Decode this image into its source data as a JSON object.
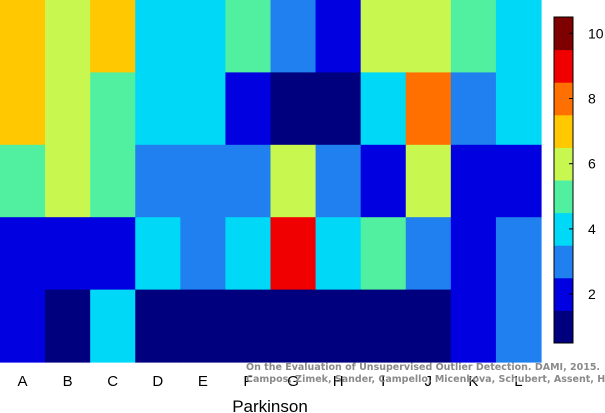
{
  "chart_data": {
    "type": "heatmap",
    "title": "",
    "xlabel": "Parkinson",
    "ylabel": "",
    "categories": [
      "A",
      "B",
      "C",
      "D",
      "E",
      "F",
      "G",
      "H",
      "I",
      "J",
      "K",
      "L"
    ],
    "rows": 5,
    "values": [
      [
        7,
        6,
        7,
        4,
        4,
        5,
        3,
        2,
        6,
        6,
        5,
        4
      ],
      [
        7,
        6,
        5,
        4,
        4,
        2,
        1,
        1,
        4,
        8,
        3,
        4
      ],
      [
        5,
        6,
        5,
        3,
        3,
        3,
        6,
        3,
        2,
        6,
        2,
        2
      ],
      [
        2,
        2,
        2,
        4,
        3,
        4,
        9,
        4,
        5,
        3,
        2,
        3
      ],
      [
        2,
        1,
        4,
        1,
        1,
        1,
        1,
        1,
        1,
        1,
        2,
        3
      ]
    ],
    "colorbar": {
      "ticks": [
        2,
        4,
        6,
        8,
        10
      ],
      "min": 0.5,
      "max": 10.5,
      "colors": [
        "#00007F",
        "#0000E0",
        "#2080F0",
        "#00D8F8",
        "#50F0A0",
        "#C8F850",
        "#FFC800",
        "#FF7000",
        "#F00000",
        "#7F0000"
      ]
    },
    "grid": false
  },
  "credit": {
    "line1": "On the Evaluation of Unsupervised Outlier Detection. DAMI, 2015.",
    "line2": "Campos, Zimek, Sander, Campello, Micenkova, Schubert, Assent, Houle"
  }
}
